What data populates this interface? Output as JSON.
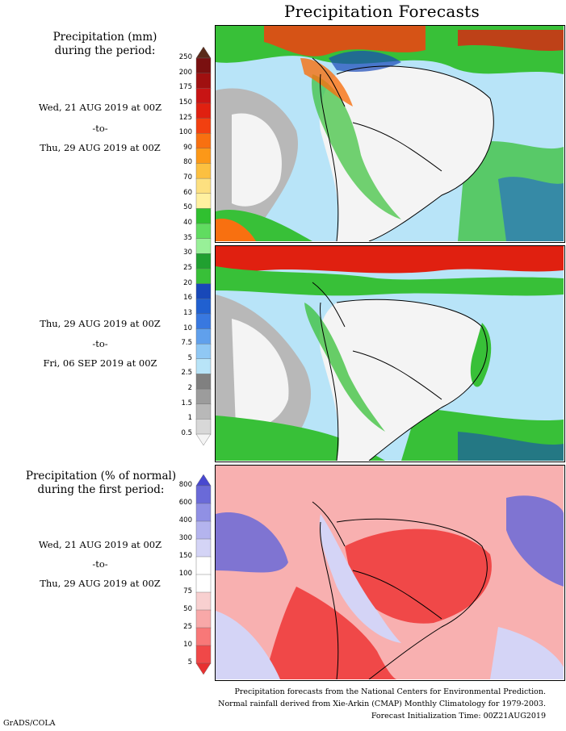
{
  "header": {
    "title": "Precipitation Forecasts"
  },
  "legend_mm": {
    "title_line1": "Precipitation (mm)",
    "title_line2": "during the period:",
    "ticks": [
      "250",
      "200",
      "175",
      "150",
      "125",
      "100",
      "90",
      "80",
      "70",
      "60",
      "50",
      "40",
      "35",
      "30",
      "25",
      "20",
      "16",
      "13",
      "10",
      "7.5",
      "5",
      "2.5",
      "2",
      "1.5",
      "1",
      "0.5"
    ],
    "colors": [
      "#5a2a1a",
      "#7a1010",
      "#a01010",
      "#c81414",
      "#e02010",
      "#f24010",
      "#f87010",
      "#fc9818",
      "#fcc040",
      "#fde080",
      "#fff0a0",
      "#30c030",
      "#60dc60",
      "#98f098",
      "#20a030",
      "#38c038",
      "#1848b8",
      "#2060d0",
      "#3878e0",
      "#60a0ec",
      "#90c8f4",
      "#b8e4f8",
      "#808080",
      "#9c9c9c",
      "#b8b8b8",
      "#d8d8d8",
      "#f4f4f4"
    ]
  },
  "period1": {
    "start": "Wed, 21 AUG 2019 at 00Z",
    "sep": "-to-",
    "end": "Thu, 29 AUG 2019 at 00Z"
  },
  "period2": {
    "start": "Thu, 29 AUG 2019 at 00Z",
    "sep": "-to-",
    "end": "Fri, 06 SEP 2019 at 00Z"
  },
  "legend_pct": {
    "title_line1": "Precipitation (% of normal)",
    "title_line2": "during the first period:",
    "ticks": [
      "800",
      "600",
      "400",
      "300",
      "150",
      "100",
      "75",
      "50",
      "25",
      "10",
      "5"
    ],
    "colors": [
      "#4848d0",
      "#6a6ad8",
      "#9090e4",
      "#b4b4ee",
      "#d4d4f6",
      "#ffffff",
      "#ffffff",
      "#f8d0d0",
      "#f8a8a8",
      "#f87878",
      "#f04848",
      "#e83030"
    ]
  },
  "period3": {
    "start": "Wed, 21 AUG 2019 at 00Z",
    "sep": "-to-",
    "end": "Thu, 29 AUG 2019 at 00Z"
  },
  "footer": {
    "line1": "Precipitation forecasts from the National Centers for Environmental Prediction.",
    "line2": "Normal rainfall derived from Xie-Arkin (CMAP) Monthly Climatology for 1979-2003.",
    "line3": "Forecast Initialization Time: 00Z21AUG2019",
    "credit": "GrADS/COLA"
  }
}
